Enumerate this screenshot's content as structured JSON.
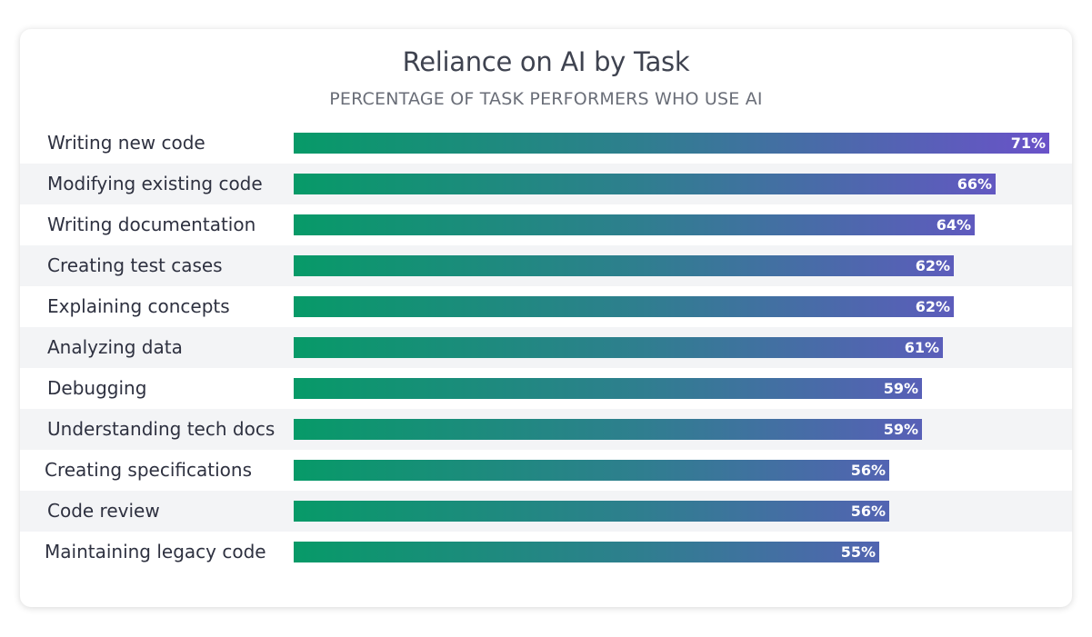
{
  "chart_data": {
    "type": "bar",
    "orientation": "horizontal",
    "title": "Reliance on AI by Task",
    "subtitle": "PERCENTAGE OF TASK PERFORMERS WHO USE AI",
    "value_suffix": "%",
    "xlim": [
      0,
      71
    ],
    "categories": [
      "Writing new code",
      "Modifying existing code",
      "Writing documentation",
      "Creating test cases",
      "Explaining concepts",
      "Analyzing data",
      "Debugging",
      "Understanding tech docs",
      "Creating specifications",
      "Code review",
      "Maintaining legacy code"
    ],
    "values": [
      71,
      66,
      64,
      62,
      62,
      61,
      59,
      59,
      56,
      56,
      55
    ],
    "labels": [
      "71%",
      "66%",
      "64%",
      "62%",
      "62%",
      "61%",
      "59%",
      "59%",
      "56%",
      "56%",
      "55%"
    ],
    "grid": false,
    "legend": "none",
    "colors": {
      "bar_start": "#079a68",
      "bar_end": "#6a52c9",
      "row_alt": "#f3f4f6"
    }
  }
}
